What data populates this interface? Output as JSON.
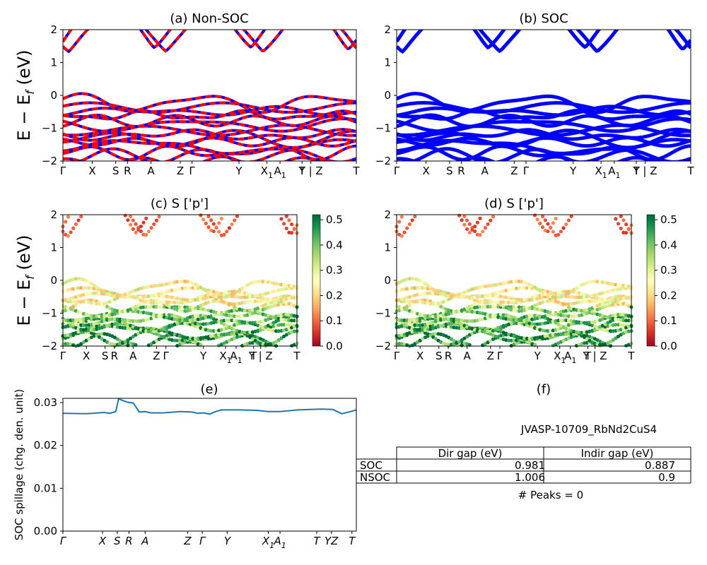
{
  "colors": {
    "red": "#ff0000",
    "blue": "#0000ff",
    "spill": "#1f77b4"
  },
  "chart_data": [
    {
      "type": "line",
      "title": "(a) Non-SOC",
      "ylabel": "E − E_f (eV)",
      "ylim": [
        -2,
        2
      ],
      "yticks": [
        "−2",
        "−1",
        "0",
        "1",
        "2"
      ],
      "kpath": [
        {
          "label": "Γ",
          "x": 0
        },
        {
          "label": "X",
          "x": 0.1
        },
        {
          "label": "S",
          "x": 0.18
        },
        {
          "label": "R",
          "x": 0.22
        },
        {
          "label": "A",
          "x": 0.3
        },
        {
          "label": "Z",
          "x": 0.4
        },
        {
          "label": "Γ",
          "x": 0.44
        },
        {
          "label": "Y",
          "x": 0.6
        },
        {
          "label": "X1",
          "x": 0.695
        },
        {
          "label": "A1",
          "x": 0.74
        },
        {
          "label": "T",
          "x": 0.815
        },
        {
          "label": "Y | Z",
          "x": 0.845
        },
        {
          "label": "T",
          "x": 1
        }
      ],
      "series": [
        {
          "values": []
        },
        {
          "values": []
        }
      ]
    },
    {
      "type": "line",
      "title": "(b) SOC",
      "ylim": [
        -2,
        2
      ],
      "yticks": [
        "−2",
        "−1",
        "0",
        "1",
        "2"
      ],
      "kpath": [
        {
          "label": "Γ",
          "x": 0
        },
        {
          "label": "X",
          "x": 0.1
        },
        {
          "label": "S",
          "x": 0.18
        },
        {
          "label": "R",
          "x": 0.22
        },
        {
          "label": "A",
          "x": 0.3
        },
        {
          "label": "Z",
          "x": 0.4
        },
        {
          "label": "Γ",
          "x": 0.44
        },
        {
          "label": "Y",
          "x": 0.6
        },
        {
          "label": "X1",
          "x": 0.695
        },
        {
          "label": "A1",
          "x": 0.74
        },
        {
          "label": "T",
          "x": 0.815
        },
        {
          "label": "Y | Z",
          "x": 0.845
        },
        {
          "label": "T",
          "x": 1
        }
      ],
      "series": [
        {
          "values": []
        }
      ]
    },
    {
      "type": "scatter",
      "title": "(c)  S ['p']",
      "ylabel": "E − E_f (eV)",
      "ylim": [
        -2,
        2
      ],
      "yticks": [
        "−2",
        "−1",
        "0",
        "1",
        "2"
      ],
      "colorbar": {
        "ticks": [
          "0.0",
          "0.1",
          "0.2",
          "0.3",
          "0.4",
          "0.5"
        ],
        "range": [
          0,
          0.52
        ]
      },
      "kpath": [
        {
          "label": "Γ",
          "x": 0
        },
        {
          "label": "X",
          "x": 0.1
        },
        {
          "label": "S",
          "x": 0.18
        },
        {
          "label": "R",
          "x": 0.22
        },
        {
          "label": "A",
          "x": 0.3
        },
        {
          "label": "Z",
          "x": 0.4
        },
        {
          "label": "Γ",
          "x": 0.44
        },
        {
          "label": "Y",
          "x": 0.6
        },
        {
          "label": "X1",
          "x": 0.695
        },
        {
          "label": "A1",
          "x": 0.74
        },
        {
          "label": "T",
          "x": 0.815
        },
        {
          "label": "Y | Z",
          "x": 0.845
        },
        {
          "label": "T",
          "x": 1
        }
      ]
    },
    {
      "type": "scatter",
      "title": "(d) S ['p']",
      "ylim": [
        -2,
        2
      ],
      "yticks": [
        "−2",
        "−1",
        "0",
        "1",
        "2"
      ],
      "colorbar": {
        "ticks": [
          "0.0",
          "0.1",
          "0.2",
          "0.3",
          "0.4",
          "0.5"
        ],
        "range": [
          0,
          0.52
        ]
      },
      "kpath": [
        {
          "label": "Γ",
          "x": 0
        },
        {
          "label": "X",
          "x": 0.1
        },
        {
          "label": "S",
          "x": 0.18
        },
        {
          "label": "R",
          "x": 0.22
        },
        {
          "label": "A",
          "x": 0.3
        },
        {
          "label": "Z",
          "x": 0.4
        },
        {
          "label": "Γ",
          "x": 0.44
        },
        {
          "label": "Y",
          "x": 0.6
        },
        {
          "label": "X1",
          "x": 0.695
        },
        {
          "label": "A1",
          "x": 0.74
        },
        {
          "label": "T",
          "x": 0.815
        },
        {
          "label": "Y | Z",
          "x": 0.845
        },
        {
          "label": "T",
          "x": 1
        }
      ]
    },
    {
      "type": "line",
      "title": "(e)",
      "ylabel": "SOC spillage (chg. den. unit)",
      "ylim": [
        0,
        0.031
      ],
      "yticks": [
        "0.00",
        "0.01",
        "0.02",
        "0.03"
      ],
      "kpath": [
        {
          "label": "Γ",
          "x": 0
        },
        {
          "label": "X",
          "x": 0.135
        },
        {
          "label": "S",
          "x": 0.185
        },
        {
          "label": "R",
          "x": 0.225
        },
        {
          "label": "A",
          "x": 0.28
        },
        {
          "label": "Z",
          "x": 0.425
        },
        {
          "label": "Γ",
          "x": 0.475
        },
        {
          "label": "Y",
          "x": 0.56
        },
        {
          "label": "X1",
          "x": 0.7
        },
        {
          "label": "A1",
          "x": 0.74
        },
        {
          "label": "T",
          "x": 0.865
        },
        {
          "label": "YZ",
          "x": 0.915
        },
        {
          "label": "T",
          "x": 0.985
        }
      ],
      "series": [
        {
          "x": [
            0,
            0.08,
            0.14,
            0.16,
            0.18,
            0.19,
            0.2,
            0.22,
            0.24,
            0.26,
            0.28,
            0.3,
            0.34,
            0.4,
            0.44,
            0.46,
            0.48,
            0.5,
            0.52,
            0.54,
            0.6,
            0.66,
            0.7,
            0.74,
            0.8,
            0.88,
            0.92,
            0.95,
            0.98,
            1
          ],
          "values": [
            0.0275,
            0.0274,
            0.0277,
            0.0275,
            0.0279,
            0.0309,
            0.0306,
            0.0301,
            0.0299,
            0.0278,
            0.0279,
            0.0276,
            0.0276,
            0.0279,
            0.0278,
            0.0275,
            0.0276,
            0.0273,
            0.0279,
            0.0283,
            0.0283,
            0.0282,
            0.0279,
            0.0279,
            0.0283,
            0.0285,
            0.0284,
            0.0274,
            0.0279,
            0.0283
          ]
        }
      ]
    }
  ],
  "panel_f": {
    "title": "(f)",
    "material": "JVASP-10709_RbNd2CuS4",
    "table": {
      "headers": [
        "Dir gap (eV)",
        "Indir gap (eV)"
      ],
      "rows": [
        {
          "label": "SOC",
          "dir": "0.981",
          "indir": "0.887"
        },
        {
          "label": "NSOC",
          "dir": "1.006",
          "indir": "0.9"
        }
      ]
    },
    "peaks": "# Peaks = 0"
  }
}
